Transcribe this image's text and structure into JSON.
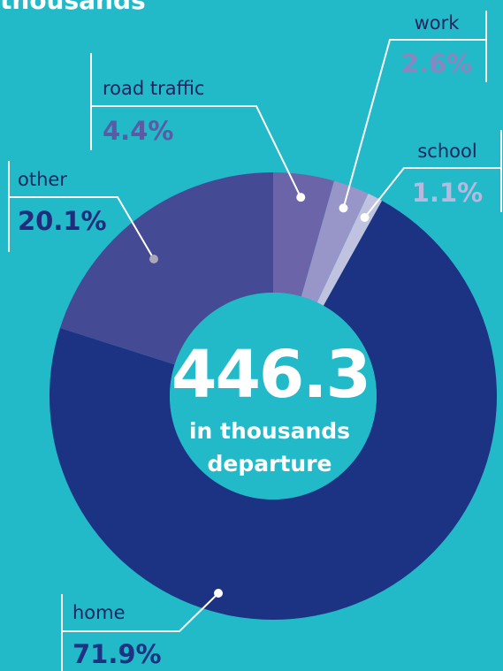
{
  "header": {
    "title": "thousands"
  },
  "chart_data": {
    "type": "pie",
    "categories": [
      "road traffic",
      "work",
      "school",
      "home",
      "other"
    ],
    "values": [
      4.4,
      2.6,
      1.1,
      71.9,
      20.1
    ],
    "value_labels": [
      "4.4%",
      "2.6%",
      "1.1%",
      "71.9%",
      "20.1%"
    ],
    "colors": [
      "#6c64a8",
      "#9895c9",
      "#c0c3e0",
      "#1c3282",
      "#444a93"
    ],
    "label_colors": [
      "#5b5aa3",
      "#8a86c2",
      "#b7b9de",
      "#1c3282",
      "#1f2d7c"
    ],
    "center": {
      "value": "446.3",
      "line1": "in thousands",
      "line2": "departure"
    }
  }
}
